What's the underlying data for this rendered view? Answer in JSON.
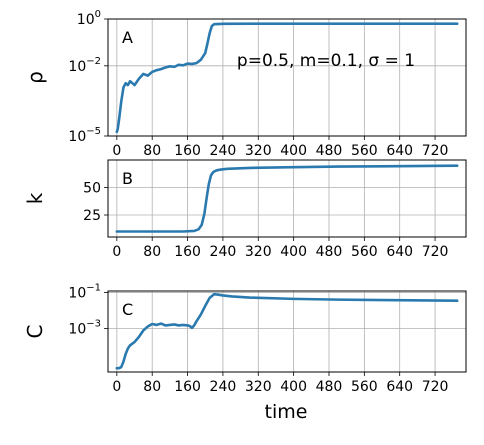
{
  "figure": {
    "xlabel": "time",
    "accent_color": "#2a7ab0"
  },
  "chart_data": [
    {
      "type": "line",
      "panel_label": "A",
      "ylabel": "ρ",
      "yscale": "log",
      "annotation": "p=0.5, m=0.1, σ = 1",
      "xlim": [
        -20,
        790
      ],
      "ylim": [
        1e-05,
        1
      ],
      "x_ticks": [
        0,
        80,
        160,
        240,
        320,
        400,
        480,
        560,
        640,
        720
      ],
      "x_tick_labels": [
        "0",
        "80",
        "160",
        "240",
        "320",
        "400",
        "480",
        "560",
        "640",
        "720"
      ],
      "y_ticks": [
        1e-05,
        0.01,
        1
      ],
      "y_tick_labels": [
        {
          "base": "10",
          "exp": "−5"
        },
        {
          "base": "10",
          "exp": "−2"
        },
        {
          "base": "10",
          "exp": "0"
        }
      ],
      "grid": true,
      "series": [
        {
          "color": "#2a7ab0",
          "x": [
            0,
            2,
            5,
            10,
            15,
            20,
            25,
            30,
            40,
            50,
            60,
            70,
            80,
            90,
            100,
            110,
            120,
            130,
            140,
            150,
            160,
            170,
            180,
            190,
            200,
            205,
            210,
            215,
            220,
            240,
            300,
            400,
            500,
            600,
            700,
            770
          ],
          "y": [
            1.5e-05,
            2e-05,
            5e-05,
            0.0003,
            0.0012,
            0.0018,
            0.0015,
            0.0022,
            0.0015,
            0.0028,
            0.0045,
            0.0038,
            0.0055,
            0.0065,
            0.0072,
            0.0085,
            0.0095,
            0.009,
            0.011,
            0.0105,
            0.0125,
            0.012,
            0.013,
            0.018,
            0.035,
            0.09,
            0.25,
            0.5,
            0.6,
            0.62,
            0.63,
            0.63,
            0.63,
            0.63,
            0.63,
            0.63
          ]
        }
      ]
    },
    {
      "type": "line",
      "panel_label": "B",
      "ylabel": "k",
      "yscale": "linear",
      "xlim": [
        -20,
        790
      ],
      "ylim": [
        5,
        75
      ],
      "x_ticks": [
        0,
        80,
        160,
        240,
        320,
        400,
        480,
        560,
        640,
        720
      ],
      "x_tick_labels": [
        "0",
        "80",
        "160",
        "240",
        "320",
        "400",
        "480",
        "560",
        "640",
        "720"
      ],
      "y_ticks": [
        25,
        50
      ],
      "y_tick_labels": [
        "25",
        "50"
      ],
      "grid": true,
      "series": [
        {
          "color": "#2a7ab0",
          "x": [
            0,
            50,
            100,
            150,
            175,
            185,
            192,
            198,
            203,
            208,
            213,
            218,
            225,
            235,
            250,
            300,
            400,
            500,
            600,
            700,
            770
          ],
          "y": [
            10,
            10,
            10,
            10,
            10.5,
            12,
            16,
            26,
            40,
            53,
            61,
            64,
            65.5,
            66.3,
            67,
            67.8,
            68.5,
            69,
            69.3,
            69.6,
            69.8
          ]
        }
      ]
    },
    {
      "type": "line",
      "panel_label": "C",
      "ylabel": "C",
      "yscale": "log",
      "xlim": [
        -20,
        790
      ],
      "ylim": [
        4e-06,
        0.12
      ],
      "x_ticks": [
        0,
        80,
        160,
        240,
        320,
        400,
        480,
        560,
        640,
        720
      ],
      "x_tick_labels": [
        "0",
        "80",
        "160",
        "240",
        "320",
        "400",
        "480",
        "560",
        "640",
        "720"
      ],
      "y_ticks": [
        0.001,
        0.1
      ],
      "y_tick_labels": [
        {
          "base": "10",
          "exp": "−3"
        },
        {
          "base": "10",
          "exp": "−1"
        }
      ],
      "grid": true,
      "series": [
        {
          "color": "#2a7ab0",
          "x": [
            0,
            5,
            10,
            15,
            20,
            25,
            30,
            40,
            50,
            60,
            70,
            80,
            90,
            100,
            110,
            120,
            130,
            140,
            150,
            160,
            165,
            170,
            175,
            180,
            190,
            200,
            210,
            220,
            230,
            240,
            260,
            300,
            400,
            500,
            600,
            700,
            770
          ],
          "y": [
            6.5e-06,
            6.5e-06,
            7.5e-06,
            1.5e-05,
            4e-05,
            8e-05,
            0.00012,
            0.00018,
            0.00035,
            0.0008,
            0.0013,
            0.0018,
            0.0016,
            0.0019,
            0.0015,
            0.0016,
            0.0017,
            0.0015,
            0.0016,
            0.0015,
            0.0014,
            0.0011,
            0.0015,
            0.0025,
            0.006,
            0.018,
            0.05,
            0.08,
            0.075,
            0.068,
            0.06,
            0.052,
            0.044,
            0.04,
            0.038,
            0.036,
            0.035
          ]
        }
      ]
    }
  ]
}
